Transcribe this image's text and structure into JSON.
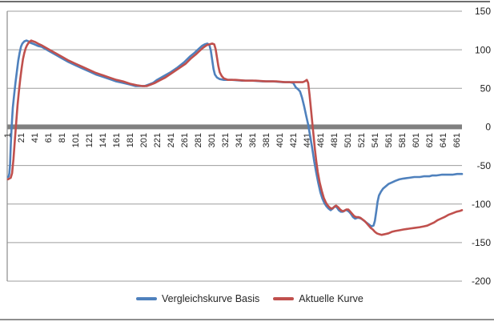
{
  "chart_data": {
    "type": "line",
    "title": "",
    "xlabel": "",
    "ylabel": "",
    "grid": true,
    "legend_position": "bottom",
    "x_domain": [
      1,
      668
    ],
    "y_range": [
      -200,
      150
    ],
    "x_ticks": [
      1,
      21,
      41,
      61,
      81,
      101,
      121,
      141,
      161,
      181,
      201,
      221,
      241,
      261,
      281,
      301,
      321,
      341,
      361,
      381,
      401,
      421,
      441,
      461,
      481,
      501,
      521,
      541,
      561,
      581,
      601,
      621,
      641,
      661
    ],
    "y_ticks": [
      150,
      100,
      50,
      0,
      -50,
      -100,
      -150,
      -200
    ],
    "colors": {
      "gridline": "#9d9d9d",
      "zero_band": "#808080",
      "axis_line": "#8c8c8c",
      "axis_text": "#1f1f1f",
      "top_border": "#6e6e6e",
      "bottom_border": "#8f8f8f"
    },
    "series": [
      {
        "name": "Vergleichskurve  Basis",
        "color": "#4F81BD",
        "points": [
          [
            1,
            -65
          ],
          [
            2,
            -64
          ],
          [
            3,
            -60
          ],
          [
            4,
            -48
          ],
          [
            5,
            -25
          ],
          [
            6,
            -5
          ],
          [
            7,
            10
          ],
          [
            8,
            25
          ],
          [
            10,
            42
          ],
          [
            12,
            58
          ],
          [
            14,
            72
          ],
          [
            16,
            86
          ],
          [
            18,
            96
          ],
          [
            20,
            104
          ],
          [
            22,
            108
          ],
          [
            25,
            111
          ],
          [
            28,
            112
          ],
          [
            31,
            111
          ],
          [
            34,
            109
          ],
          [
            37,
            108
          ],
          [
            40,
            107
          ],
          [
            45,
            105
          ],
          [
            50,
            104
          ],
          [
            60,
            99
          ],
          [
            70,
            94
          ],
          [
            80,
            89
          ],
          [
            90,
            84
          ],
          [
            100,
            80
          ],
          [
            110,
            76
          ],
          [
            120,
            72
          ],
          [
            130,
            68
          ],
          [
            140,
            65
          ],
          [
            150,
            62
          ],
          [
            160,
            59
          ],
          [
            170,
            57
          ],
          [
            180,
            55
          ],
          [
            188,
            53
          ],
          [
            196,
            53
          ],
          [
            202,
            53
          ],
          [
            208,
            55
          ],
          [
            214,
            57
          ],
          [
            220,
            61
          ],
          [
            230,
            66
          ],
          [
            240,
            71
          ],
          [
            250,
            77
          ],
          [
            260,
            84
          ],
          [
            268,
            91
          ],
          [
            275,
            96
          ],
          [
            281,
            101
          ],
          [
            286,
            105
          ],
          [
            290,
            107
          ],
          [
            294,
            108
          ],
          [
            297,
            106
          ],
          [
            299,
            99
          ],
          [
            301,
            87
          ],
          [
            303,
            75
          ],
          [
            305,
            68
          ],
          [
            308,
            64
          ],
          [
            312,
            62
          ],
          [
            318,
            61
          ],
          [
            330,
            61
          ],
          [
            345,
            60
          ],
          [
            360,
            60
          ],
          [
            375,
            59
          ],
          [
            390,
            59
          ],
          [
            405,
            58
          ],
          [
            415,
            58
          ],
          [
            420,
            57
          ],
          [
            422,
            54
          ],
          [
            424,
            51
          ],
          [
            427,
            49
          ],
          [
            430,
            46
          ],
          [
            433,
            38
          ],
          [
            436,
            27
          ],
          [
            439,
            15
          ],
          [
            442,
            3
          ],
          [
            445,
            -12
          ],
          [
            448,
            -28
          ],
          [
            451,
            -45
          ],
          [
            454,
            -60
          ],
          [
            457,
            -73
          ],
          [
            460,
            -85
          ],
          [
            463,
            -93
          ],
          [
            466,
            -99
          ],
          [
            469,
            -103
          ],
          [
            472,
            -106
          ],
          [
            475,
            -108
          ],
          [
            478,
            -106
          ],
          [
            481,
            -103
          ],
          [
            484,
            -104
          ],
          [
            487,
            -108
          ],
          [
            490,
            -110
          ],
          [
            493,
            -110
          ],
          [
            496,
            -108
          ],
          [
            499,
            -108
          ],
          [
            502,
            -110
          ],
          [
            505,
            -113
          ],
          [
            508,
            -117
          ],
          [
            511,
            -119
          ],
          [
            514,
            -118
          ],
          [
            517,
            -118
          ],
          [
            520,
            -119
          ],
          [
            523,
            -121
          ],
          [
            526,
            -123
          ],
          [
            529,
            -125
          ],
          [
            532,
            -127
          ],
          [
            535,
            -129
          ],
          [
            538,
            -128
          ],
          [
            540,
            -122
          ],
          [
            542,
            -110
          ],
          [
            544,
            -97
          ],
          [
            546,
            -89
          ],
          [
            549,
            -84
          ],
          [
            552,
            -80
          ],
          [
            556,
            -77
          ],
          [
            560,
            -74
          ],
          [
            565,
            -72
          ],
          [
            570,
            -70
          ],
          [
            576,
            -68
          ],
          [
            582,
            -67
          ],
          [
            590,
            -66
          ],
          [
            598,
            -65
          ],
          [
            606,
            -65
          ],
          [
            612,
            -64
          ],
          [
            616,
            -64
          ],
          [
            620,
            -64
          ],
          [
            624,
            -63
          ],
          [
            630,
            -63
          ],
          [
            638,
            -62
          ],
          [
            646,
            -62
          ],
          [
            654,
            -62
          ],
          [
            661,
            -61
          ],
          [
            668,
            -61
          ]
        ]
      },
      {
        "name": "Aktuelle Kurve",
        "color": "#C0504D",
        "points": [
          [
            1,
            -68
          ],
          [
            3,
            -67
          ],
          [
            5,
            -66
          ],
          [
            7,
            -60
          ],
          [
            9,
            -42
          ],
          [
            11,
            -18
          ],
          [
            13,
            5
          ],
          [
            15,
            28
          ],
          [
            17,
            46
          ],
          [
            19,
            62
          ],
          [
            21,
            76
          ],
          [
            23,
            88
          ],
          [
            25,
            96
          ],
          [
            27,
            102
          ],
          [
            29,
            106
          ],
          [
            32,
            110
          ],
          [
            35,
            112
          ],
          [
            38,
            111
          ],
          [
            41,
            110
          ],
          [
            45,
            108
          ],
          [
            50,
            106
          ],
          [
            60,
            101
          ],
          [
            70,
            96
          ],
          [
            80,
            91
          ],
          [
            90,
            86
          ],
          [
            100,
            82
          ],
          [
            110,
            78
          ],
          [
            120,
            74
          ],
          [
            130,
            70
          ],
          [
            140,
            67
          ],
          [
            150,
            64
          ],
          [
            160,
            61
          ],
          [
            170,
            59
          ],
          [
            180,
            56
          ],
          [
            190,
            54
          ],
          [
            198,
            53
          ],
          [
            205,
            53
          ],
          [
            211,
            55
          ],
          [
            217,
            57
          ],
          [
            223,
            60
          ],
          [
            232,
            64
          ],
          [
            242,
            70
          ],
          [
            252,
            76
          ],
          [
            262,
            82
          ],
          [
            270,
            89
          ],
          [
            277,
            94
          ],
          [
            283,
            99
          ],
          [
            288,
            103
          ],
          [
            293,
            106
          ],
          [
            297,
            107
          ],
          [
            301,
            108
          ],
          [
            304,
            107
          ],
          [
            306,
            101
          ],
          [
            308,
            90
          ],
          [
            310,
            79
          ],
          [
            312,
            71
          ],
          [
            315,
            66
          ],
          [
            318,
            63
          ],
          [
            324,
            61
          ],
          [
            335,
            61
          ],
          [
            350,
            60
          ],
          [
            365,
            60
          ],
          [
            380,
            59
          ],
          [
            395,
            59
          ],
          [
            408,
            58
          ],
          [
            418,
            58
          ],
          [
            425,
            58
          ],
          [
            430,
            58
          ],
          [
            434,
            58
          ],
          [
            437,
            59
          ],
          [
            440,
            61
          ],
          [
            442,
            57
          ],
          [
            444,
            42
          ],
          [
            446,
            24
          ],
          [
            448,
            6
          ],
          [
            450,
            -12
          ],
          [
            452,
            -30
          ],
          [
            454,
            -45
          ],
          [
            456,
            -58
          ],
          [
            459,
            -72
          ],
          [
            462,
            -83
          ],
          [
            465,
            -92
          ],
          [
            468,
            -98
          ],
          [
            471,
            -102
          ],
          [
            474,
            -105
          ],
          [
            477,
            -106
          ],
          [
            480,
            -104
          ],
          [
            483,
            -102
          ],
          [
            486,
            -104
          ],
          [
            489,
            -107
          ],
          [
            492,
            -109
          ],
          [
            495,
            -109
          ],
          [
            498,
            -107
          ],
          [
            501,
            -107
          ],
          [
            504,
            -110
          ],
          [
            507,
            -113
          ],
          [
            510,
            -116
          ],
          [
            513,
            -117
          ],
          [
            516,
            -117
          ],
          [
            519,
            -118
          ],
          [
            522,
            -120
          ],
          [
            525,
            -122
          ],
          [
            528,
            -125
          ],
          [
            531,
            -128
          ],
          [
            534,
            -131
          ],
          [
            537,
            -133
          ],
          [
            540,
            -136
          ],
          [
            543,
            -138
          ],
          [
            546,
            -139
          ],
          [
            550,
            -140
          ],
          [
            555,
            -139
          ],
          [
            560,
            -138
          ],
          [
            565,
            -136
          ],
          [
            570,
            -135
          ],
          [
            576,
            -134
          ],
          [
            582,
            -133
          ],
          [
            590,
            -132
          ],
          [
            598,
            -131
          ],
          [
            606,
            -130
          ],
          [
            612,
            -129
          ],
          [
            617,
            -128
          ],
          [
            622,
            -126
          ],
          [
            627,
            -124
          ],
          [
            632,
            -121
          ],
          [
            637,
            -119
          ],
          [
            642,
            -117
          ],
          [
            648,
            -114
          ],
          [
            654,
            -112
          ],
          [
            660,
            -110
          ],
          [
            665,
            -109
          ],
          [
            668,
            -108
          ]
        ]
      }
    ]
  }
}
